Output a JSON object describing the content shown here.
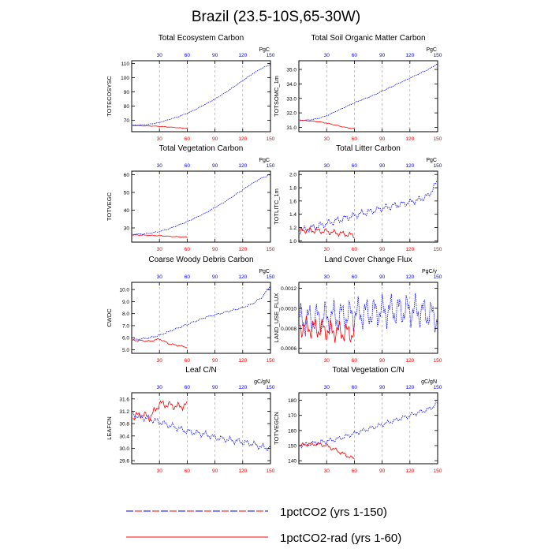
{
  "title": "Brazil (23.5-10S,65-30W)",
  "colors": {
    "run1": "#0000ff",
    "run2": "#ff0000",
    "axis": "#000000",
    "grid": "#999999"
  },
  "legend": {
    "entries": [
      {
        "label": "1pctCO2 (yrs 1-150)",
        "color": "#0000ff",
        "style": "dashed"
      },
      {
        "label": "1pctCO2-rad (yrs 1-60)",
        "color": "#ff0000",
        "style": "solid"
      }
    ]
  },
  "chart_data": [
    {
      "type": "line",
      "title": "Total Ecosystem Carbon",
      "ylabel": "TOTECOSYSC",
      "unit": "PgC",
      "xlim": [
        0,
        150
      ],
      "ylim": [
        62,
        112
      ],
      "yticks": [
        70,
        80,
        90,
        100,
        110
      ],
      "xticks": [
        30,
        60,
        90,
        120,
        150
      ],
      "grid_x": [
        30,
        60,
        90,
        120
      ],
      "series": [
        {
          "x": [
            0,
            10,
            20,
            30,
            40,
            50,
            60,
            70,
            80,
            90,
            100,
            110,
            120,
            130,
            140,
            150
          ],
          "y": [
            66.5,
            66.8,
            67.3,
            68.5,
            70.5,
            72.5,
            75.0,
            78.0,
            81.5,
            85.0,
            89.0,
            93.5,
            98.0,
            102.5,
            106.5,
            109.5
          ],
          "noise": 0.25,
          "dash": true
        },
        {
          "x": [
            0,
            10,
            20,
            30,
            40,
            50,
            60
          ],
          "y": [
            66.3,
            66.2,
            66.0,
            65.8,
            65.3,
            64.8,
            64.3
          ],
          "noise": 0.2,
          "dash": false
        }
      ]
    },
    {
      "type": "line",
      "title": "Total Soil Organic Matter Carbon",
      "ylabel": "TOTSOMC_1m",
      "unit": "PgC",
      "xlim": [
        0,
        150
      ],
      "ylim": [
        30.7,
        35.6
      ],
      "yticks": [
        31.0,
        32.0,
        33.0,
        34.0,
        35.0
      ],
      "xticks": [
        30,
        60,
        90,
        120,
        150
      ],
      "grid_x": [
        30,
        60,
        90,
        120
      ],
      "series": [
        {
          "x": [
            0,
            10,
            20,
            30,
            40,
            50,
            60,
            70,
            80,
            90,
            100,
            110,
            120,
            130,
            140,
            150
          ],
          "y": [
            31.5,
            31.5,
            31.6,
            31.8,
            32.1,
            32.4,
            32.7,
            32.95,
            33.2,
            33.5,
            33.8,
            34.1,
            34.4,
            34.7,
            35.0,
            35.4
          ],
          "noise": 0.03,
          "dash": true
        },
        {
          "x": [
            0,
            10,
            20,
            30,
            40,
            50,
            60
          ],
          "y": [
            31.5,
            31.45,
            31.4,
            31.3,
            31.15,
            31.0,
            30.9
          ],
          "noise": 0.03,
          "dash": false
        }
      ]
    },
    {
      "type": "line",
      "title": "Total Vegetation Carbon",
      "ylabel": "TOTVEGC",
      "unit": "PgC",
      "xlim": [
        0,
        150
      ],
      "ylim": [
        22,
        62
      ],
      "yticks": [
        30,
        40,
        50,
        60
      ],
      "xticks": [
        30,
        60,
        90,
        120,
        150
      ],
      "grid_x": [
        30,
        60,
        90,
        120
      ],
      "series": [
        {
          "x": [
            0,
            10,
            20,
            30,
            40,
            50,
            60,
            70,
            80,
            90,
            100,
            110,
            120,
            130,
            140,
            150
          ],
          "y": [
            26.5,
            26.5,
            27.0,
            28.0,
            29.5,
            31.5,
            33.5,
            36.0,
            38.5,
            41.5,
            44.5,
            48.0,
            51.5,
            55.0,
            58.0,
            60.0
          ],
          "noise": 0.3,
          "dash": true
        },
        {
          "x": [
            0,
            10,
            20,
            30,
            40,
            50,
            60
          ],
          "y": [
            26.0,
            26.0,
            25.8,
            25.6,
            25.3,
            25.0,
            24.8
          ],
          "noise": 0.25,
          "dash": false
        }
      ]
    },
    {
      "type": "line",
      "title": "Total Litter Carbon",
      "ylabel": "TOTLITC_1m",
      "unit": "PgC",
      "xlim": [
        0,
        150
      ],
      "ylim": [
        0.98,
        2.05
      ],
      "yticks": [
        1.0,
        1.2,
        1.4,
        1.6,
        1.8,
        2.0
      ],
      "xticks": [
        30,
        60,
        90,
        120,
        150
      ],
      "grid_x": [
        30,
        60,
        90,
        120
      ],
      "series": [
        {
          "x": [
            0,
            10,
            20,
            30,
            40,
            50,
            60,
            70,
            80,
            90,
            100,
            110,
            120,
            130,
            140,
            150
          ],
          "y": [
            1.15,
            1.18,
            1.22,
            1.26,
            1.3,
            1.34,
            1.38,
            1.42,
            1.45,
            1.49,
            1.52,
            1.55,
            1.58,
            1.62,
            1.68,
            1.9
          ],
          "noise": 0.06,
          "dash": true
        },
        {
          "x": [
            0,
            10,
            20,
            30,
            40,
            50,
            60
          ],
          "y": [
            1.15,
            1.16,
            1.15,
            1.14,
            1.12,
            1.1,
            1.08
          ],
          "noise": 0.05,
          "dash": false
        }
      ]
    },
    {
      "type": "line",
      "title": "Coarse Woody Debris Carbon",
      "ylabel": "CWDC",
      "unit": "PgC",
      "xlim": [
        0,
        150
      ],
      "ylim": [
        4.7,
        10.6
      ],
      "yticks": [
        5.0,
        6.0,
        7.0,
        8.0,
        9.0,
        10.0
      ],
      "xticks": [
        30,
        60,
        90,
        120,
        150
      ],
      "grid_x": [
        30,
        60,
        90,
        120
      ],
      "series": [
        {
          "x": [
            0,
            10,
            20,
            30,
            40,
            50,
            60,
            70,
            80,
            90,
            100,
            110,
            120,
            130,
            140,
            150
          ],
          "y": [
            5.8,
            5.9,
            6.0,
            6.2,
            6.5,
            6.8,
            7.1,
            7.4,
            7.7,
            7.9,
            8.1,
            8.3,
            8.5,
            8.8,
            9.3,
            10.3
          ],
          "noise": 0.08,
          "dash": true
        },
        {
          "x": [
            0,
            10,
            20,
            30,
            40,
            50,
            60
          ],
          "y": [
            5.8,
            5.75,
            5.7,
            5.9,
            5.5,
            5.35,
            5.2
          ],
          "noise": 0.07,
          "dash": false
        }
      ]
    },
    {
      "type": "line",
      "title": "Land Cover Change Flux",
      "ylabel": "LAND_USE_FLUX",
      "unit": "PgC/y",
      "xlim": [
        0,
        150
      ],
      "ylim": [
        0.00055,
        0.00126
      ],
      "yticks": [
        0.0006,
        0.0008,
        0.001,
        0.0012
      ],
      "xticks": [
        30,
        60,
        90,
        120,
        150
      ],
      "grid_x": [
        30,
        60,
        90,
        120
      ],
      "series": [
        {
          "x": [
            0,
            10,
            20,
            30,
            40,
            50,
            60,
            70,
            80,
            90,
            100,
            110,
            120,
            130,
            140,
            150
          ],
          "y": [
            0.00088,
            0.00089,
            0.0009,
            0.00091,
            0.00092,
            0.00093,
            0.00094,
            0.00095,
            0.00096,
            0.00097,
            0.00098,
            0.00098,
            0.00098,
            0.00097,
            0.00095,
            0.0009
          ],
          "noise": 0.00018,
          "dash": true
        },
        {
          "x": [
            0,
            10,
            20,
            30,
            40,
            50,
            60
          ],
          "y": [
            0.00082,
            0.00081,
            0.0008,
            0.00078,
            0.00077,
            0.00076,
            0.00075
          ],
          "noise": 0.00012,
          "dash": false
        }
      ]
    },
    {
      "type": "line",
      "title": "Leaf C/N",
      "ylabel": "LEAFCN",
      "unit": "gC/gN",
      "xlim": [
        0,
        150
      ],
      "ylim": [
        29.5,
        31.8
      ],
      "yticks": [
        29.6,
        30.0,
        30.4,
        30.8,
        31.2,
        31.6
      ],
      "ytick_labels": [
        "29.6",
        "30.0",
        "30.4",
        "30.8",
        "31.2",
        "31.6"
      ],
      "xticks": [
        30,
        60,
        90,
        120,
        150
      ],
      "grid_x": [
        30,
        60,
        90,
        120
      ],
      "series": [
        {
          "x": [
            0,
            10,
            20,
            30,
            40,
            50,
            60,
            70,
            80,
            90,
            100,
            110,
            120,
            130,
            140,
            150
          ],
          "y": [
            31.1,
            31.0,
            30.95,
            30.85,
            30.75,
            30.65,
            30.55,
            30.5,
            30.45,
            30.35,
            30.3,
            30.25,
            30.2,
            30.15,
            30.05,
            30.0
          ],
          "noise": 0.12,
          "dash": true
        },
        {
          "x": [
            0,
            10,
            20,
            30,
            40,
            50,
            60
          ],
          "y": [
            31.0,
            31.1,
            31.0,
            31.45,
            31.4,
            31.35,
            31.4
          ],
          "noise": 0.15,
          "dash": false
        }
      ]
    },
    {
      "type": "line",
      "title": "Total Vegetation C/N",
      "ylabel": "TOTVEGCN",
      "unit": "gC/gN",
      "xlim": [
        0,
        150
      ],
      "ylim": [
        138,
        185
      ],
      "yticks": [
        140,
        150,
        160,
        170,
        180
      ],
      "xticks": [
        30,
        60,
        90,
        120,
        150
      ],
      "grid_x": [
        30,
        60,
        90,
        120
      ],
      "series": [
        {
          "x": [
            0,
            10,
            20,
            30,
            40,
            50,
            60,
            70,
            80,
            90,
            100,
            110,
            120,
            130,
            140,
            150
          ],
          "y": [
            150,
            151,
            152,
            153,
            154,
            156,
            158,
            160,
            162,
            164,
            166,
            168,
            170,
            172,
            174,
            178
          ],
          "noise": 1.8,
          "dash": true
        },
        {
          "x": [
            0,
            10,
            20,
            30,
            40,
            50,
            60
          ],
          "y": [
            150,
            151,
            151,
            150,
            147,
            144,
            141
          ],
          "noise": 1.5,
          "dash": false
        }
      ]
    }
  ]
}
